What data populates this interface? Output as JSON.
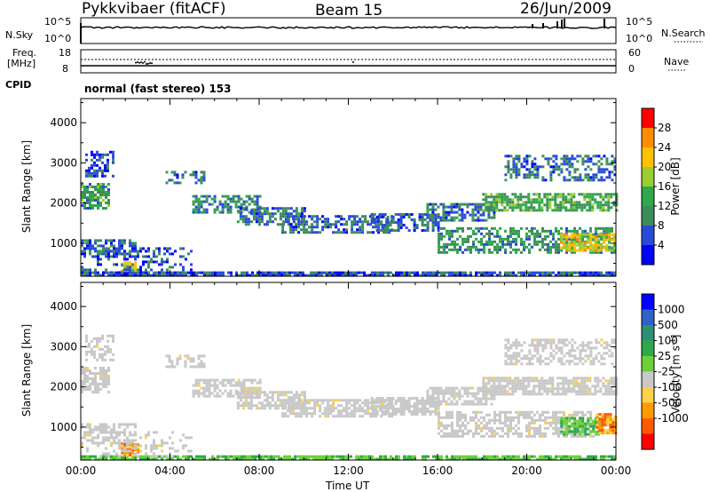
{
  "header": {
    "station": "Pykkvibaer (fitACF)",
    "beam": "Beam 15",
    "date": "26/Jun/2009"
  },
  "nsky_panel": {
    "left_label": "N.Sky",
    "left_ticks": [
      "10^5",
      "10^0"
    ],
    "right_ticks": [
      "10^5",
      "10^0"
    ],
    "right_label": "N.Search"
  },
  "freq_panel": {
    "left_label": "Freq.",
    "left_unit": "[MHz]",
    "left_ticks": [
      "18",
      "8"
    ],
    "right_ticks": [
      "60",
      "0"
    ],
    "right_label": "Nave"
  },
  "cpid": {
    "label": "CPID",
    "text": "normal (fast stereo) 153"
  },
  "colors": {
    "power_scale": [
      "#0000ff",
      "#2a4bd7",
      "#3c8c5a",
      "#2ea84a",
      "#9acd32",
      "#ffc000",
      "#ff8c00",
      "#ff0000"
    ],
    "velocity_scale": [
      "#ff0000",
      "#ff5a00",
      "#ff9a00",
      "#ffd04a",
      "#c8c8c8",
      "#6fcf3a",
      "#2ea84a",
      "#2d8f75",
      "#3060c8",
      "#0000ff"
    ],
    "ground_scatter": "#c8c8c8"
  },
  "chart_data": [
    {
      "type": "heatmap",
      "name": "power",
      "xlabel": "",
      "ylabel": "Slant Range [km]",
      "x_ticks": [
        "00:00",
        "04:00",
        "08:00",
        "12:00",
        "16:00",
        "20:00",
        "00:00"
      ],
      "y_ticks": [
        1000,
        2000,
        3000,
        4000
      ],
      "xlim": [
        0,
        24
      ],
      "ylim": [
        180,
        4600
      ],
      "colorbar": {
        "label": "Power [dB]",
        "ticks": [
          4,
          8,
          12,
          16,
          20,
          24,
          28
        ],
        "range": [
          0,
          32
        ]
      },
      "bands": [
        {
          "x": [
            0.0,
            24.0
          ],
          "r": [
            190,
            300
          ],
          "level": 6,
          "density": 0.85
        },
        {
          "x": [
            0.2,
            1.5
          ],
          "r": [
            2700,
            3300
          ],
          "level": 6,
          "density": 0.5
        },
        {
          "x": [
            0.0,
            1.2
          ],
          "r": [
            1900,
            2500
          ],
          "level": 12,
          "density": 0.7
        },
        {
          "x": [
            0.0,
            2.5
          ],
          "r": [
            700,
            1100
          ],
          "level": 8,
          "density": 0.6
        },
        {
          "x": [
            1.8,
            2.5
          ],
          "r": [
            300,
            550
          ],
          "level": 20,
          "density": 0.8
        },
        {
          "x": [
            3.8,
            5.5
          ],
          "r": [
            2500,
            2800
          ],
          "level": 8,
          "density": 0.4
        },
        {
          "x": [
            5.0,
            8.0
          ],
          "r": [
            1800,
            2200
          ],
          "level": 10,
          "density": 0.6
        },
        {
          "x": [
            7.0,
            10.0
          ],
          "r": [
            1500,
            1900
          ],
          "level": 8,
          "density": 0.6
        },
        {
          "x": [
            9.0,
            14.0
          ],
          "r": [
            1300,
            1700
          ],
          "level": 7,
          "density": 0.6
        },
        {
          "x": [
            13.0,
            16.0
          ],
          "r": [
            1350,
            1750
          ],
          "level": 7,
          "density": 0.6
        },
        {
          "x": [
            15.5,
            18.5
          ],
          "r": [
            1600,
            2000
          ],
          "level": 8,
          "density": 0.6
        },
        {
          "x": [
            18.0,
            24.0
          ],
          "r": [
            1850,
            2250
          ],
          "level": 13,
          "density": 0.75
        },
        {
          "x": [
            19.0,
            24.0
          ],
          "r": [
            2600,
            3200
          ],
          "level": 8,
          "density": 0.45
        },
        {
          "x": [
            16.0,
            24.0
          ],
          "r": [
            800,
            1400
          ],
          "level": 11,
          "density": 0.55
        },
        {
          "x": [
            21.5,
            24.0
          ],
          "r": [
            850,
            1250
          ],
          "level": 20,
          "density": 0.7
        },
        {
          "x": [
            0.0,
            5.0
          ],
          "r": [
            300,
            900
          ],
          "level": 6,
          "density": 0.3
        }
      ]
    },
    {
      "type": "heatmap",
      "name": "velocity",
      "xlabel": "Time UT",
      "ylabel": "Slant Range [km]",
      "x_ticks": [
        "00:00",
        "04:00",
        "08:00",
        "12:00",
        "16:00",
        "20:00",
        "00:00"
      ],
      "y_ticks": [
        1000,
        2000,
        3000,
        4000
      ],
      "xlim": [
        0,
        24
      ],
      "ylim": [
        180,
        4600
      ],
      "colorbar": {
        "label": "Velocity [m s^-1]",
        "ticks": [
          "1000",
          "500",
          "100",
          "25",
          "-25",
          "-100",
          "-500",
          "-1000"
        ]
      },
      "bands": [
        {
          "x": [
            0.0,
            24.0
          ],
          "r": [
            190,
            300
          ],
          "level": "green",
          "density": 0.8
        },
        {
          "x": [
            0.0,
            1.2
          ],
          "r": [
            1900,
            2500
          ],
          "level": "gray",
          "density": 0.7
        },
        {
          "x": [
            0.2,
            1.5
          ],
          "r": [
            2700,
            3300
          ],
          "level": "gray",
          "density": 0.5
        },
        {
          "x": [
            0.0,
            2.5
          ],
          "r": [
            600,
            1100
          ],
          "level": "gray",
          "density": 0.6
        },
        {
          "x": [
            1.8,
            2.6
          ],
          "r": [
            300,
            600
          ],
          "level": "orange",
          "density": 0.8
        },
        {
          "x": [
            3.8,
            5.5
          ],
          "r": [
            2500,
            2800
          ],
          "level": "gray",
          "density": 0.5
        },
        {
          "x": [
            5.0,
            8.0
          ],
          "r": [
            1800,
            2200
          ],
          "level": "gray",
          "density": 0.7
        },
        {
          "x": [
            7.0,
            10.0
          ],
          "r": [
            1500,
            1900
          ],
          "level": "gray",
          "density": 0.7
        },
        {
          "x": [
            9.0,
            14.0
          ],
          "r": [
            1300,
            1700
          ],
          "level": "gray",
          "density": 0.7
        },
        {
          "x": [
            13.0,
            16.0
          ],
          "r": [
            1350,
            1750
          ],
          "level": "gray",
          "density": 0.7
        },
        {
          "x": [
            15.5,
            18.5
          ],
          "r": [
            1600,
            2000
          ],
          "level": "gray",
          "density": 0.7
        },
        {
          "x": [
            18.0,
            24.0
          ],
          "r": [
            1850,
            2250
          ],
          "level": "gray",
          "density": 0.75
        },
        {
          "x": [
            19.0,
            24.0
          ],
          "r": [
            2600,
            3200
          ],
          "level": "gray",
          "density": 0.5
        },
        {
          "x": [
            16.0,
            23.0
          ],
          "r": [
            800,
            1400
          ],
          "level": "gray",
          "density": 0.6
        },
        {
          "x": [
            21.5,
            23.4
          ],
          "r": [
            850,
            1250
          ],
          "level": "green",
          "density": 0.75
        },
        {
          "x": [
            23.1,
            24.0
          ],
          "r": [
            850,
            1350
          ],
          "level": "orange",
          "density": 0.85
        },
        {
          "x": [
            0.0,
            5.0
          ],
          "r": [
            300,
            900
          ],
          "level": "gray",
          "density": 0.25
        }
      ]
    }
  ]
}
